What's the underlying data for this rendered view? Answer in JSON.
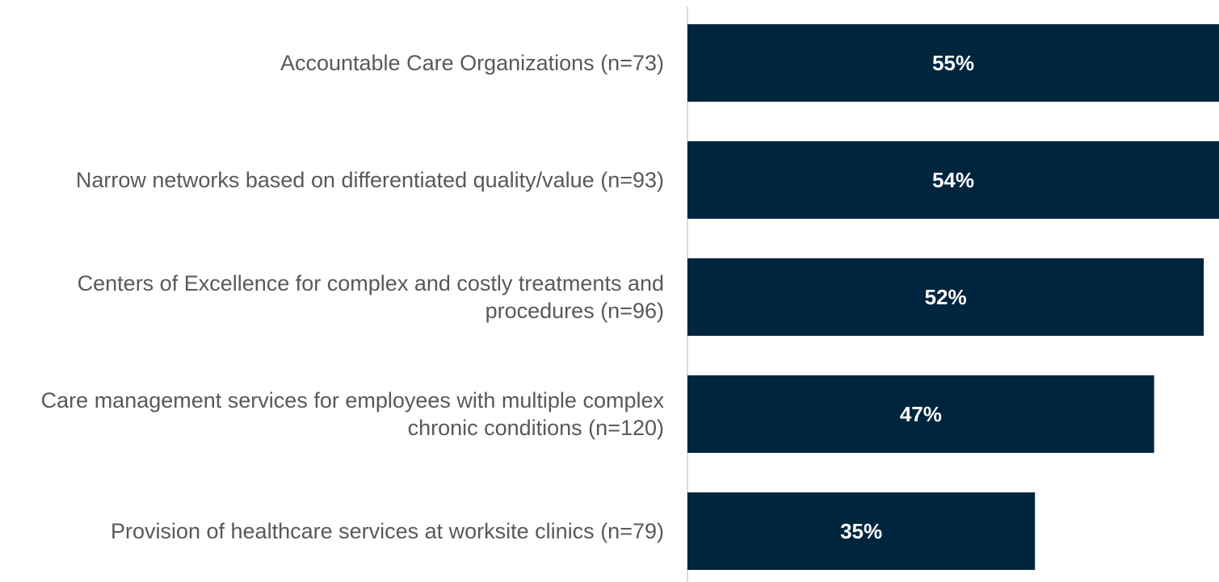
{
  "chart_data": {
    "type": "bar",
    "orientation": "horizontal",
    "categories": [
      "Accountable Care Organizations (n=73)",
      "Narrow networks based on differentiated quality/value (n=93)",
      "Centers of Excellence for complex and costly treatments and procedures (n=96)",
      "Care management services for employees with multiple complex chronic conditions (n=120)",
      "Provision of healthcare services at worksite clinics (n=79)"
    ],
    "values": [
      55,
      54,
      52,
      47,
      35
    ],
    "value_labels": [
      "55%",
      "54%",
      "52%",
      "47%",
      "35%"
    ],
    "color": "#00253e",
    "xlim": [
      0,
      55
    ]
  }
}
